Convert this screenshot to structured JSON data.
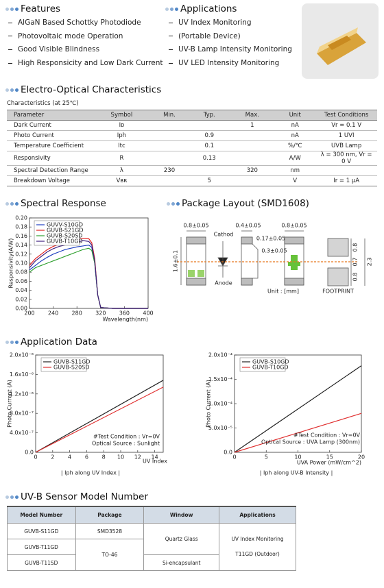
{
  "features": {
    "title": "Features",
    "items": [
      "AlGaN Based Schottky Photodiode",
      "Photovoltaic mode Operation",
      "Good Visible Blindness",
      "High Responsicity and Low Dark Current"
    ]
  },
  "applications": {
    "title": "Applications",
    "items": [
      "UV Index Monitoring",
      "(Portable Device)",
      "UV-B Lamp Intensity Monitoring",
      "UV LED Intensity Monitoring"
    ]
  },
  "electro_optical": {
    "title": "Electro-Optical Characteristics",
    "caption": "Characteristics (at 25℃)",
    "header": [
      "Parameter",
      "Symbol",
      "Min.",
      "Typ.",
      "Max.",
      "Unit",
      "Test Conditions"
    ],
    "rows": [
      [
        "Dark Current",
        "Iᴅ",
        null,
        null,
        1,
        "nA",
        "Vr = 0.1 V"
      ],
      [
        "Photo Current",
        "Iph",
        null,
        0.9,
        null,
        "nA",
        "1 UVI"
      ],
      [
        "Temperature Coefficient",
        "Itc",
        null,
        0.1,
        null,
        "%/℃",
        "UVB Lamp"
      ],
      [
        "Responsivity",
        "R",
        null,
        0.13,
        null,
        "A/W",
        "λ = 300 nm, Vr = 0 V"
      ],
      [
        "Spectral Detection Range",
        "λ",
        230,
        null,
        320,
        "nm",
        null
      ],
      [
        "Breakdown Voltage",
        "Vʙʀ",
        null,
        5,
        null,
        "V",
        "Ir = 1 μA"
      ]
    ]
  },
  "spectral": {
    "title": "Spectral Response"
  },
  "package": {
    "title": "Package Layout (SMD1608)",
    "labels": [
      "0.8±0.05",
      "Cathod",
      "0.4±0.05",
      "0.8±0.05",
      "0.17±0.05",
      "0.3±0.05",
      "1.6±0.1",
      "Anode",
      "Unit : [mm]",
      "FOOTPRINT",
      "0.8",
      "0.7",
      "0.8",
      "2.3"
    ]
  },
  "application_data": {
    "title": "Application Data"
  },
  "model_table": {
    "title": "UV-B Sensor Model Number",
    "header": [
      "Model Number",
      "Package",
      "Window",
      "Applications"
    ],
    "models": [
      "GUVB-S11GD",
      "GUVB-T11GD",
      "GUVB-T11SD"
    ],
    "packages": [
      "SMD3528",
      "TO-46"
    ],
    "windows": [
      "Quartz Glass",
      "Si-encapsulant"
    ],
    "applications": [
      "UV Index Monitoring",
      "T11GD (Outdoor)"
    ]
  },
  "chart_data": [
    {
      "type": "line",
      "ylabel": "Responsivity(A/W)",
      "xlabel": "Wavelength(nm)",
      "x": [
        200,
        210,
        220,
        230,
        240,
        250,
        260,
        270,
        280,
        290,
        300,
        305,
        310,
        315,
        320,
        340,
        360,
        380,
        400
      ],
      "series": [
        {
          "name": "GUVV-S10GD",
          "color": "#2040c0",
          "values": [
            0.085,
            0.095,
            0.105,
            0.113,
            0.12,
            0.125,
            0.13,
            0.133,
            0.136,
            0.138,
            0.14,
            0.135,
            0.1,
            0.03,
            0.002,
            0,
            0,
            0,
            0
          ]
        },
        {
          "name": "GUVB-S21GD",
          "color": "#e02020",
          "values": [
            0.095,
            0.11,
            0.12,
            0.13,
            0.137,
            0.142,
            0.146,
            0.149,
            0.152,
            0.155,
            0.154,
            0.145,
            0.11,
            0.03,
            0.002,
            0,
            0,
            0,
            0
          ]
        },
        {
          "name": "GUVB-S20SD",
          "color": "#30a030",
          "values": [
            0.08,
            0.09,
            0.095,
            0.1,
            0.105,
            0.11,
            0.115,
            0.12,
            0.125,
            0.13,
            0.133,
            0.128,
            0.1,
            0.03,
            0.002,
            0,
            0,
            0,
            0
          ]
        },
        {
          "name": "GUVB-T10GD",
          "color": "#402080",
          "values": [
            0.09,
            0.105,
            0.115,
            0.125,
            0.132,
            0.137,
            0.14,
            0.143,
            0.146,
            0.15,
            0.148,
            0.14,
            0.105,
            0.03,
            0.002,
            0,
            0,
            0,
            0
          ]
        }
      ],
      "xlim": [
        200,
        400
      ],
      "xticks": [
        200,
        240,
        280,
        320,
        360,
        400
      ],
      "ylim": [
        0,
        0.2
      ],
      "yticks": [
        {
          "value": 0,
          "label": "0.00"
        },
        {
          "value": 0.02,
          "label": "0.02"
        },
        {
          "value": 0.04,
          "label": "0.04"
        },
        {
          "value": 0.06,
          "label": "0.06"
        },
        {
          "value": 0.08,
          "label": "0.08"
        },
        {
          "value": 0.1,
          "label": "0.10"
        },
        {
          "value": 0.12,
          "label": "0.12"
        },
        {
          "value": 0.14,
          "label": "0.14"
        },
        {
          "value": 0.16,
          "label": "0.16"
        },
        {
          "value": 0.18,
          "label": "0.18"
        },
        {
          "value": 0.2,
          "label": "0.20"
        }
      ],
      "grid": false
    },
    {
      "type": "line",
      "ylabel": "Photo Current (A)",
      "xlabel": "UV Index",
      "x": [
        0,
        15
      ],
      "series": [
        {
          "name": "GUVB-S11GD",
          "color": "#222222",
          "values": [
            0,
            1.48e-06
          ]
        },
        {
          "name": "GUVB-S20SD",
          "color": "#e03030",
          "values": [
            0,
            1.34e-06
          ]
        }
      ],
      "xlim": [
        0,
        15
      ],
      "xticks": [
        0,
        2,
        4,
        6,
        8,
        10,
        12,
        14
      ],
      "ylim": [
        0,
        2e-06
      ],
      "yticks": [
        {
          "value": 0,
          "label": "0.0"
        },
        {
          "value": 4e-07,
          "label": "4.0x10⁻⁷"
        },
        {
          "value": 8e-07,
          "label": "8.0x10⁻⁷"
        },
        {
          "value": 1.2e-06,
          "label": "1.2x10⁻⁶"
        },
        {
          "value": 1.6e-06,
          "label": "1.6x10⁻⁶"
        },
        {
          "value": 2e-06,
          "label": "2.0x10⁻⁶"
        }
      ],
      "annotations": [
        "#Test Condition : Vr=0V",
        "Optical Source : Sunlight"
      ],
      "caption": "| Iph along UV Index |",
      "grid": false
    },
    {
      "type": "line",
      "ylabel": "Photo Current (A)",
      "xlabel": "UVA Power (mW/cm^2)",
      "x": [
        0,
        20
      ],
      "series": [
        {
          "name": "GUVB-S10GD",
          "color": "#222222",
          "values": [
            0,
            0.000178
          ]
        },
        {
          "name": "GUVB-T10GD",
          "color": "#e03030",
          "values": [
            0,
            8e-05
          ]
        }
      ],
      "xlim": [
        0,
        20
      ],
      "xticks": [
        0,
        5,
        10,
        15,
        20
      ],
      "ylim": [
        0,
        0.0002
      ],
      "yticks": [
        {
          "value": 0,
          "label": "0.0"
        },
        {
          "value": 5e-05,
          "label": "5.0x10⁻⁵"
        },
        {
          "value": 0.0001,
          "label": "1.0x10⁻⁴"
        },
        {
          "value": 0.00015,
          "label": "1.5x10⁻⁴"
        },
        {
          "value": 0.0002,
          "label": "2.0x10⁻⁴"
        }
      ],
      "annotations": [
        "#Test Condition : Vr=0V",
        "Optical Source : UVA Lamp (300nm)"
      ],
      "caption": "| Iph along UV-B Intensity |",
      "grid": false
    }
  ]
}
